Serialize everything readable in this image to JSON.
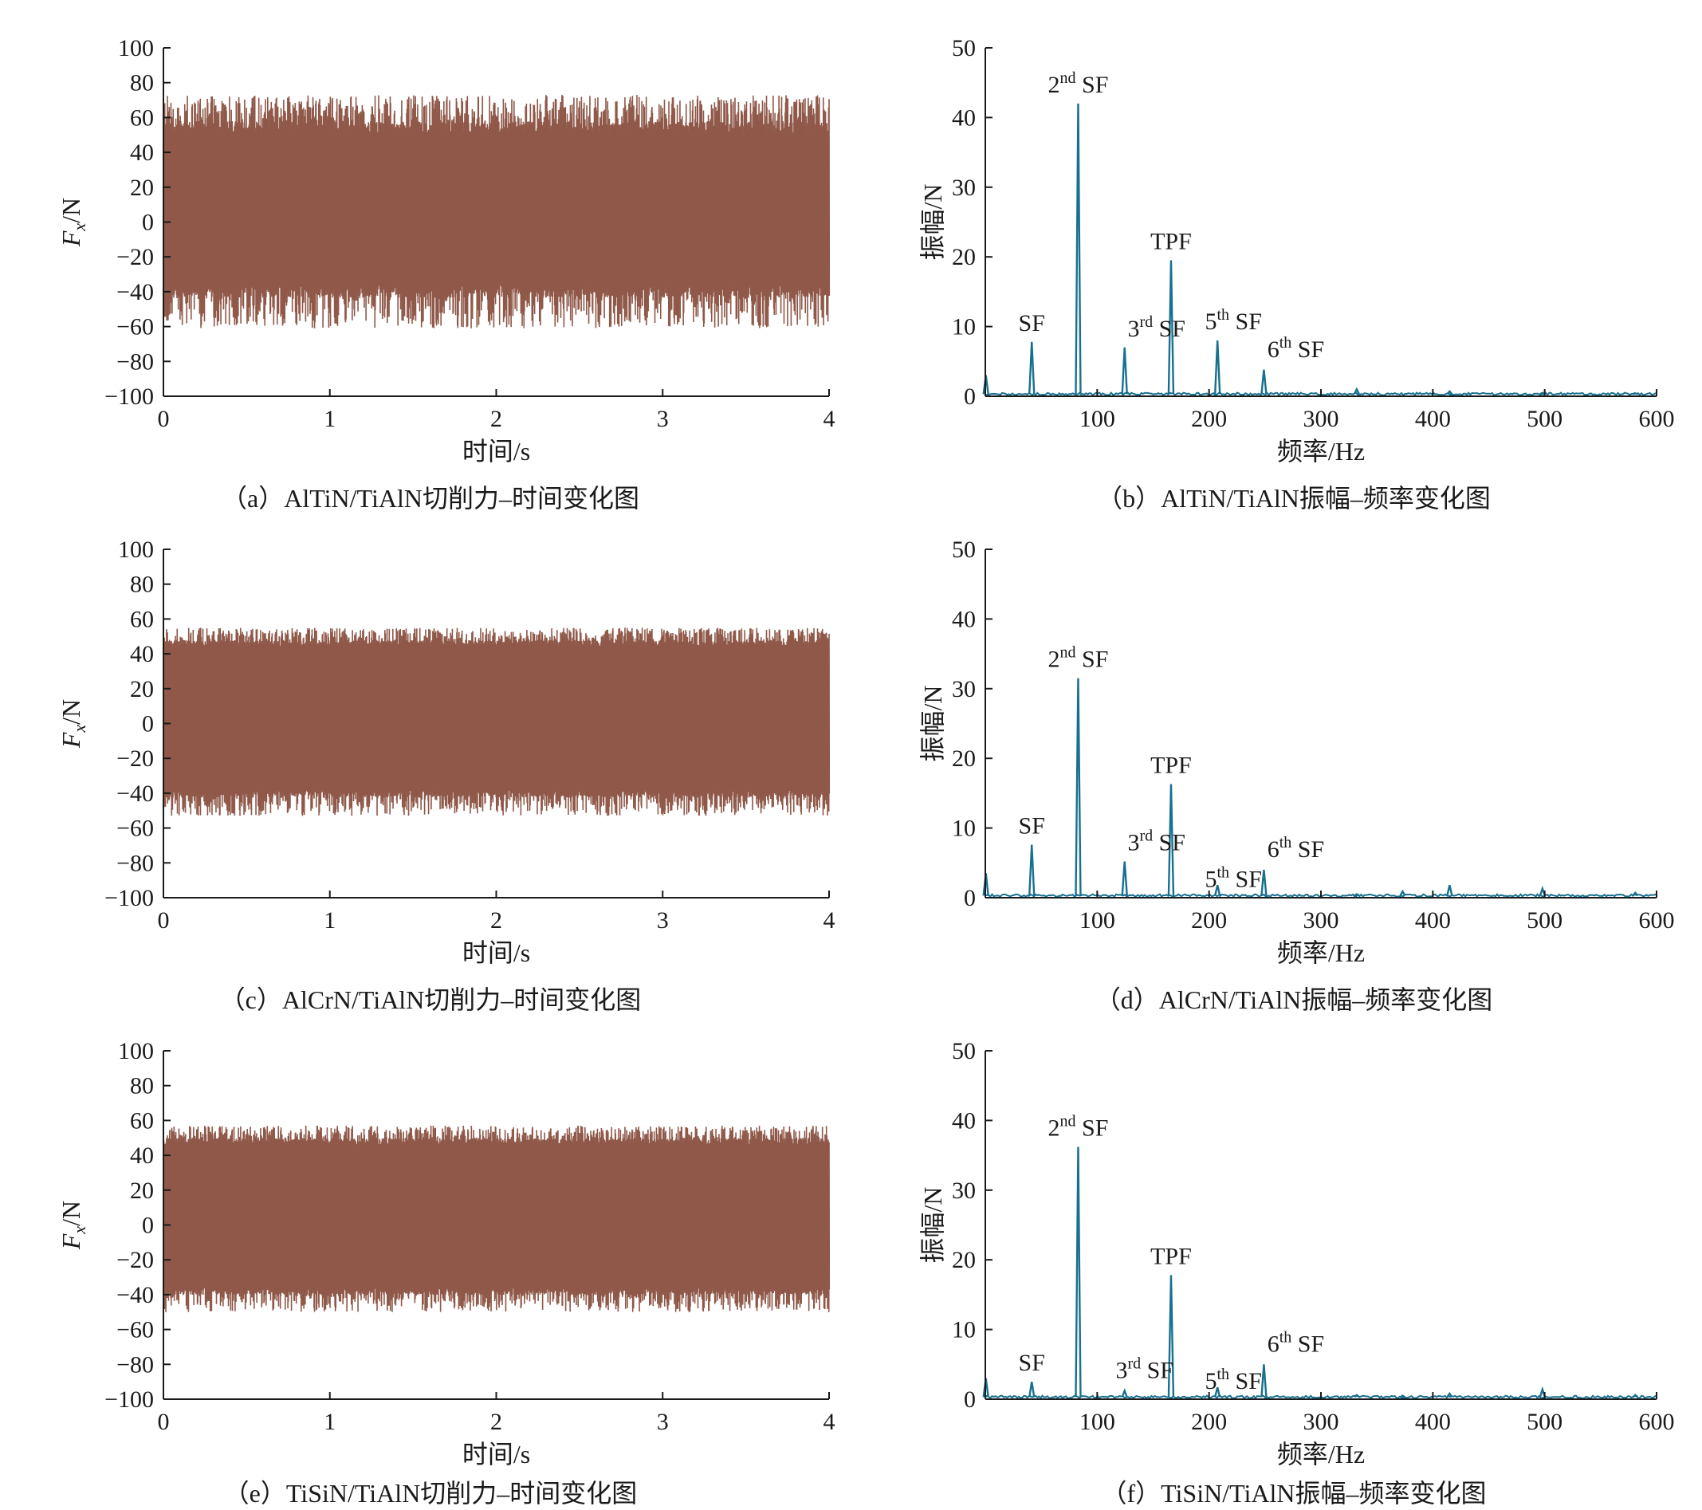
{
  "colors": {
    "time_series": "#8f5848",
    "spectrum": "#17708f",
    "axis": "#1a1a1a"
  },
  "chart_data": [
    {
      "id": "a",
      "type": "area",
      "caption": "（a）AlTiN/TiAlN切削力–时间变化图",
      "xlabel": "时间/s",
      "ylabel_main": "F",
      "ylabel_sub": "x",
      "ylabel_unit": "/N",
      "xlim": [
        0,
        4
      ],
      "ylim": [
        -100,
        100
      ],
      "xticks": [
        0,
        1,
        2,
        3,
        4
      ],
      "yticks": [
        100,
        80,
        60,
        40,
        20,
        0,
        -20,
        -40,
        -60,
        -80,
        -100
      ],
      "ytick_labels": [
        "100",
        "80",
        "60",
        "40",
        "20",
        "0",
        "−20",
        "−40",
        "−60",
        "−80",
        "−100"
      ],
      "envelope": {
        "dense_upper": 50,
        "dense_lower": -36,
        "peak_max": 73,
        "peak_min": -61
      }
    },
    {
      "id": "b",
      "type": "line",
      "caption": "（b）AlTiN/TiAlN振幅–频率变化图",
      "xlabel": "频率/Hz",
      "ylabel": "振幅/N",
      "xlim": [
        0,
        600
      ],
      "ylim": [
        0,
        50
      ],
      "xticks": [
        100,
        200,
        300,
        400,
        500,
        600
      ],
      "yticks": [
        0,
        10,
        20,
        30,
        40,
        50
      ],
      "peaks": [
        {
          "x": 0.5,
          "y": 3.0
        },
        {
          "x": 41.5,
          "y": 7.8
        },
        {
          "x": 83,
          "y": 42.0
        },
        {
          "x": 124.5,
          "y": 7.0
        },
        {
          "x": 166,
          "y": 19.5
        },
        {
          "x": 207.5,
          "y": 8.0
        },
        {
          "x": 249,
          "y": 3.8
        },
        {
          "x": 332,
          "y": 1.0
        },
        {
          "x": 415,
          "y": 0.7
        },
        {
          "x": 498,
          "y": 0.5
        },
        {
          "x": 581,
          "y": 0.4
        }
      ],
      "annotations": [
        {
          "base": "SF",
          "sup": "",
          "x": 41.5,
          "y": 7.8
        },
        {
          "base": "2",
          "sup": "nd",
          "tail": " SF",
          "x": 83,
          "y": 42.0
        },
        {
          "base": "3",
          "sup": "rd",
          "tail": " SF",
          "x": 124.5,
          "y": 7.0
        },
        {
          "base": "TPF",
          "sup": "",
          "x": 166,
          "y": 19.5
        },
        {
          "base": "5",
          "sup": "th",
          "tail": " SF",
          "x": 207.5,
          "y": 8.0
        },
        {
          "base": "6",
          "sup": "th",
          "tail": " SF",
          "x": 249,
          "y": 3.8
        }
      ]
    },
    {
      "id": "c",
      "type": "area",
      "caption": "（c）AlCrN/TiAlN切削力–时间变化图",
      "xlabel": "时间/s",
      "ylabel_main": "F",
      "ylabel_sub": "x",
      "ylabel_unit": "/N",
      "xlim": [
        0,
        4
      ],
      "ylim": [
        -100,
        100
      ],
      "xticks": [
        0,
        1,
        2,
        3,
        4
      ],
      "yticks": [
        100,
        80,
        60,
        40,
        20,
        0,
        -20,
        -40,
        -60,
        -80,
        -100
      ],
      "ytick_labels": [
        "100",
        "80",
        "60",
        "40",
        "20",
        "0",
        "−20",
        "−40",
        "−60",
        "−80",
        "−100"
      ],
      "envelope": {
        "dense_upper": 44,
        "dense_lower": -38,
        "peak_max": 55,
        "peak_min": -53
      }
    },
    {
      "id": "d",
      "type": "line",
      "caption": "（d）AlCrN/TiAlN振幅–频率变化图",
      "xlabel": "频率/Hz",
      "ylabel": "振幅/N",
      "xlim": [
        0,
        600
      ],
      "ylim": [
        0,
        50
      ],
      "xticks": [
        100,
        200,
        300,
        400,
        500,
        600
      ],
      "yticks": [
        0,
        10,
        20,
        30,
        40,
        50
      ],
      "peaks": [
        {
          "x": 0.5,
          "y": 3.5
        },
        {
          "x": 41.5,
          "y": 7.6
        },
        {
          "x": 83,
          "y": 31.5
        },
        {
          "x": 124.5,
          "y": 5.2
        },
        {
          "x": 166,
          "y": 16.3
        },
        {
          "x": 207.5,
          "y": 1.8
        },
        {
          "x": 249,
          "y": 4.0
        },
        {
          "x": 332,
          "y": 0.5
        },
        {
          "x": 373,
          "y": 0.9
        },
        {
          "x": 415,
          "y": 1.8
        },
        {
          "x": 498,
          "y": 1.3
        },
        {
          "x": 581,
          "y": 0.7
        }
      ],
      "annotations": [
        {
          "base": "SF",
          "sup": "",
          "x": 41.5,
          "y": 7.6
        },
        {
          "base": "2",
          "sup": "nd",
          "tail": " SF",
          "x": 83,
          "y": 31.5
        },
        {
          "base": "3",
          "sup": "rd",
          "tail": " SF",
          "x": 124.5,
          "y": 5.2
        },
        {
          "base": "TPF",
          "sup": "",
          "x": 166,
          "y": 16.3
        },
        {
          "base": "5",
          "sup": "th",
          "tail": " SF",
          "x": 207.5,
          "y": 1.8
        },
        {
          "base": "6",
          "sup": "th",
          "tail": " SF",
          "x": 249,
          "y": 4.0
        }
      ]
    },
    {
      "id": "e",
      "type": "area",
      "caption": "（e）TiSiN/TiAlN切削力–时间变化图",
      "xlabel": "时间/s",
      "ylabel_main": "F",
      "ylabel_sub": "x",
      "ylabel_unit": "/N",
      "xlim": [
        0,
        4
      ],
      "ylim": [
        -100,
        100
      ],
      "xticks": [
        0,
        1,
        2,
        3,
        4
      ],
      "yticks": [
        100,
        80,
        60,
        40,
        20,
        0,
        -20,
        -40,
        -60,
        -80,
        -100
      ],
      "ytick_labels": [
        "100",
        "80",
        "60",
        "40",
        "20",
        "0",
        "−20",
        "−40",
        "−60",
        "−80",
        "−100"
      ],
      "envelope": {
        "dense_upper": 46,
        "dense_lower": -36,
        "peak_max": 57,
        "peak_min": -50
      }
    },
    {
      "id": "f",
      "type": "line",
      "caption": "（f）TiSiN/TiAlN振幅–频率变化图",
      "xlabel": "频率/Hz",
      "ylabel": "振幅/N",
      "xlim": [
        0,
        600
      ],
      "ylim": [
        0,
        50
      ],
      "xticks": [
        100,
        200,
        300,
        400,
        500,
        600
      ],
      "yticks": [
        0,
        10,
        20,
        30,
        40,
        50
      ],
      "peaks": [
        {
          "x": 0.5,
          "y": 3.0
        },
        {
          "x": 41.5,
          "y": 2.5
        },
        {
          "x": 83,
          "y": 36.2
        },
        {
          "x": 124.5,
          "y": 1.2
        },
        {
          "x": 166,
          "y": 17.8
        },
        {
          "x": 207.5,
          "y": 1.7
        },
        {
          "x": 249,
          "y": 5.0
        },
        {
          "x": 332,
          "y": 0.6
        },
        {
          "x": 373,
          "y": 0.5
        },
        {
          "x": 415,
          "y": 0.8
        },
        {
          "x": 498,
          "y": 1.4
        },
        {
          "x": 581,
          "y": 0.6
        }
      ],
      "annotations": [
        {
          "base": "SF",
          "sup": "",
          "x": 41.5,
          "y": 2.5
        },
        {
          "base": "2",
          "sup": "nd",
          "tail": " SF",
          "x": 83,
          "y": 36.2
        },
        {
          "base": "3",
          "sup": "rd",
          "tail": " SF",
          "x": 124.5,
          "y": 1.2
        },
        {
          "base": "TPF",
          "sup": "",
          "x": 166,
          "y": 17.8
        },
        {
          "base": "5",
          "sup": "th",
          "tail": " SF",
          "x": 207.5,
          "y": 1.7
        },
        {
          "base": "6",
          "sup": "th",
          "tail": " SF",
          "x": 249,
          "y": 5.0
        }
      ]
    }
  ]
}
